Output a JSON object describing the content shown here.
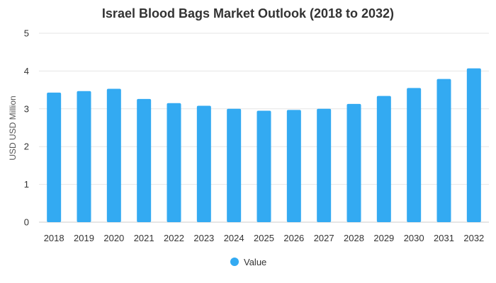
{
  "chart_data": {
    "type": "bar",
    "title": "Israel Blood Bags Market Outlook (2018 to 2032)",
    "xlabel": "",
    "ylabel": "USD USD Million",
    "categories": [
      "2018",
      "2019",
      "2020",
      "2021",
      "2022",
      "2023",
      "2024",
      "2025",
      "2026",
      "2027",
      "2028",
      "2029",
      "2030",
      "2031",
      "2032"
    ],
    "series": [
      {
        "name": "Value",
        "values": [
          3.43,
          3.47,
          3.53,
          3.26,
          3.15,
          3.08,
          3.0,
          2.95,
          2.97,
          3.0,
          3.13,
          3.34,
          3.55,
          3.79,
          4.07
        ],
        "color": "#33aaf2"
      }
    ],
    "ylim": [
      0,
      5
    ],
    "yticks": [
      "0",
      "1",
      "2",
      "3",
      "4",
      "5"
    ],
    "grid": true,
    "legend_position": "bottom"
  }
}
